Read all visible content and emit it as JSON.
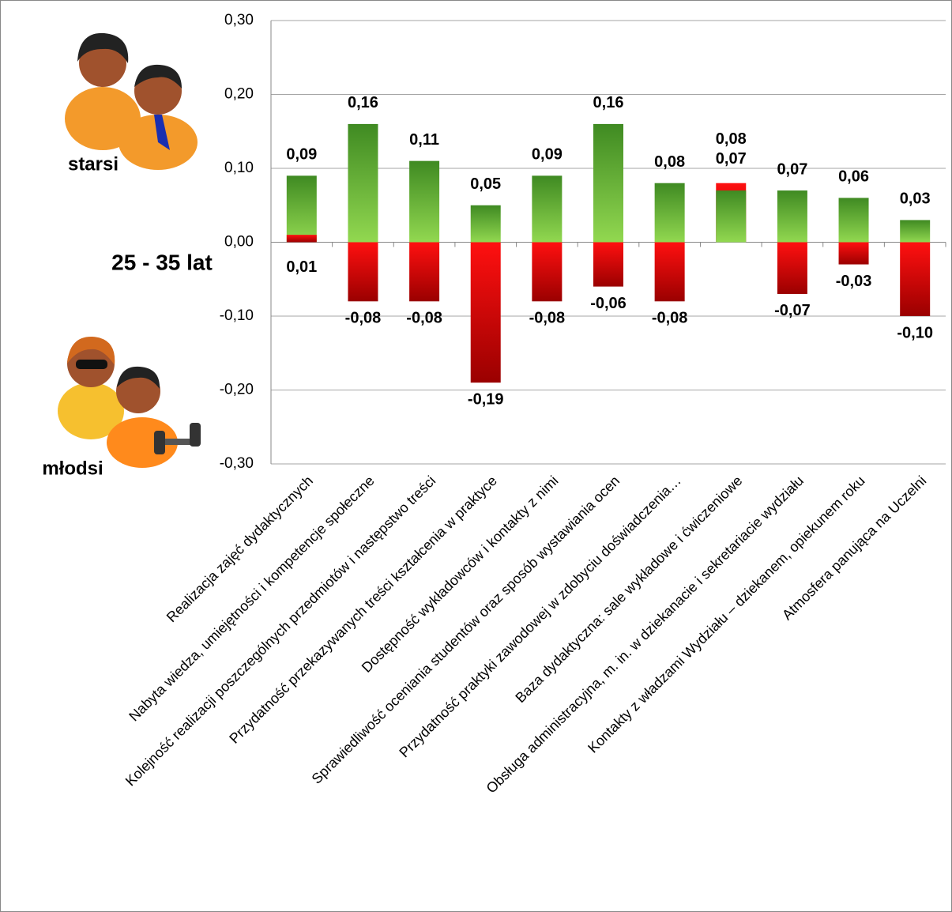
{
  "chart_data": {
    "type": "bar",
    "annotation": "25 - 35 lat",
    "categories": [
      "Realizacja zajęć dydaktycznych",
      "Nabyta wiedza, umiejętności i kompetencje społeczne",
      "Kolejność realizacji poszczególnych przedmiotów i następstwo treści",
      "Przydatność przekazywanych treści kształcenia w praktyce",
      "Dostępność wykładowców i kontakty z nimi",
      "Sprawiedliwość oceniania studentów oraz sposób wystawiania ocen",
      "Przydatność praktyki zawodowej w zdobyciu doświadczenia…",
      "Baza dydaktyczna: sale wykładowe i ćwiczeniowe",
      "Obsługa administracyjna, m. in. w dziekanacie i sekretariacie wydziału",
      "Kontakty z władzami Wydziału – dziekanem, opiekunem roku",
      "Atmosfera panująca na Uczelni"
    ],
    "series": [
      {
        "name": "starsi",
        "color": "#5a9e2f",
        "values": [
          0.09,
          0.16,
          0.11,
          0.05,
          0.09,
          0.16,
          0.08,
          0.07,
          0.07,
          0.06,
          0.03
        ],
        "value_labels": [
          "0,09",
          "0,16",
          "0,11",
          "0,05",
          "0,09",
          "0,16",
          "0,08",
          "0,07",
          "0,07",
          "0,06",
          "0,03"
        ]
      },
      {
        "name": "młodsi",
        "color": "#e00000",
        "values": [
          0.01,
          -0.08,
          -0.08,
          -0.19,
          -0.08,
          -0.06,
          -0.08,
          0.08,
          -0.07,
          -0.03,
          -0.1
        ],
        "value_labels": [
          "0,01",
          "-0,08",
          "-0,08",
          "-0,19",
          "-0,08",
          "-0,06",
          "-0,08",
          "0,08",
          "-0,07",
          "-0,03",
          "-0,10"
        ]
      }
    ],
    "ylim": [
      -0.3,
      0.3
    ],
    "yticks": [
      {
        "value": -0.3,
        "label": "-0,30"
      },
      {
        "value": -0.2,
        "label": "-0,20"
      },
      {
        "value": -0.1,
        "label": "-0,10"
      },
      {
        "value": 0,
        "label": "0,00"
      },
      {
        "value": 0.1,
        "label": "0,10"
      },
      {
        "value": 0.2,
        "label": "0,20"
      },
      {
        "value": 0.3,
        "label": "0,30"
      }
    ],
    "grid": true
  }
}
